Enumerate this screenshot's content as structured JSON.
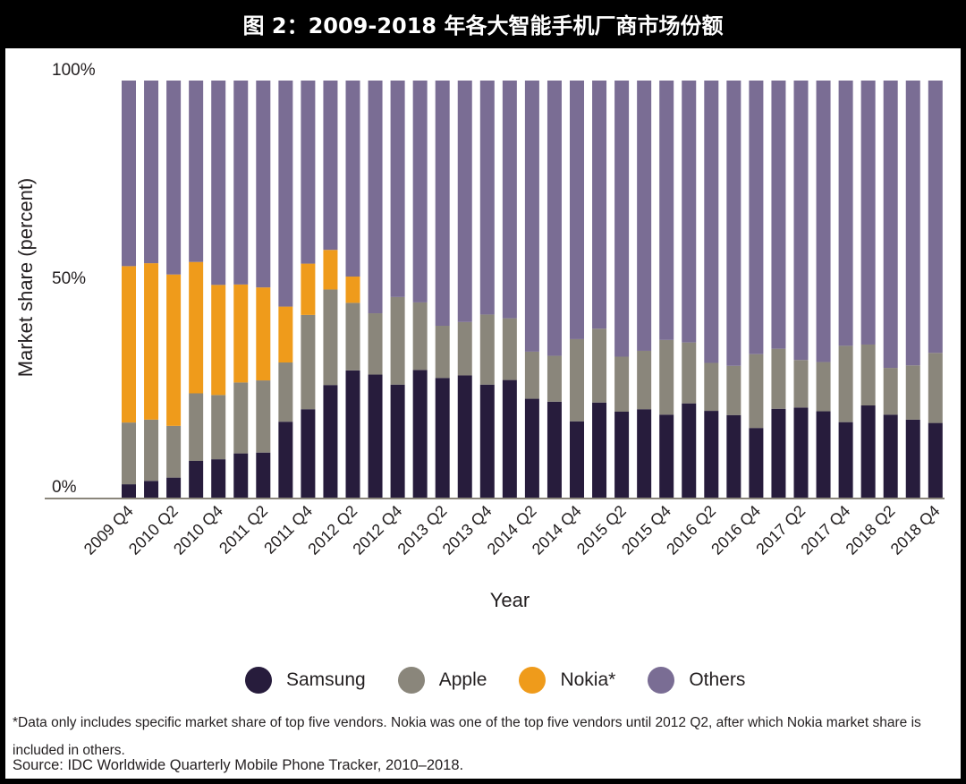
{
  "figure_title": "图 2：2009-2018 年各大智能手机厂商市场份额",
  "footnote": "*Data only includes specific market share of top five vendors. Nokia was one of the top five vendors until 2012 Q2, after which Nokia market share is included in others.",
  "source": "Source: IDC Worldwide Quarterly Mobile Phone Tracker, 2010–2018.",
  "colors": {
    "samsung": "#271c3c",
    "apple": "#8a867b",
    "nokia": "#ef9b1b",
    "others": "#7a6d94"
  },
  "chart_data": {
    "type": "bar",
    "stacked": true,
    "xlabel": "Year",
    "ylabel": "Market share (percent)",
    "ylim": [
      0,
      100
    ],
    "yticks": [
      "0%",
      "50%",
      "100%"
    ],
    "categories": [
      "2009 Q4",
      "2010 Q1",
      "2010 Q2",
      "2010 Q3",
      "2010 Q4",
      "2011 Q1",
      "2011 Q2",
      "2011 Q3",
      "2011 Q4",
      "2012 Q1",
      "2012 Q2",
      "2012 Q3",
      "2012 Q4",
      "2013 Q1",
      "2013 Q2",
      "2013 Q3",
      "2013 Q4",
      "2014 Q1",
      "2014 Q2",
      "2014 Q3",
      "2014 Q4",
      "2015 Q1",
      "2015 Q2",
      "2015 Q3",
      "2015 Q4",
      "2016 Q1",
      "2016 Q2",
      "2016 Q3",
      "2016 Q4",
      "2017 Q1",
      "2017 Q2",
      "2017 Q3",
      "2017 Q4",
      "2018 Q1",
      "2018 Q2",
      "2018 Q3",
      "2018 Q4"
    ],
    "xtick_labels": [
      "2009 Q4",
      "2010 Q2",
      "2010 Q4",
      "2011 Q2",
      "2011 Q4",
      "2012 Q2",
      "2012 Q4",
      "2013 Q2",
      "2013 Q4",
      "2014 Q2",
      "2014 Q4",
      "2015 Q2",
      "2015 Q4",
      "2016 Q2",
      "2016 Q4",
      "2017 Q2",
      "2017 Q4",
      "2018 Q2",
      "2018 Q4"
    ],
    "series": [
      {
        "name": "Samsung",
        "color_key": "samsung",
        "values": [
          3.2,
          4.0,
          4.8,
          8.8,
          9.2,
          10.6,
          10.8,
          18.2,
          21.2,
          27.0,
          30.5,
          29.5,
          27.1,
          30.6,
          28.7,
          29.3,
          27.1,
          28.2,
          23.7,
          23.0,
          18.3,
          22.8,
          20.6,
          21.2,
          19.9,
          22.6,
          20.8,
          19.8,
          16.7,
          21.3,
          21.6,
          20.7,
          18.1,
          22.1,
          19.9,
          18.7,
          17.9
        ]
      },
      {
        "name": "Apple",
        "color_key": "apple",
        "values": [
          14.8,
          14.7,
          12.4,
          16.2,
          15.4,
          17.0,
          17.3,
          14.2,
          22.6,
          22.9,
          16.2,
          14.7,
          21.0,
          16.2,
          12.5,
          12.8,
          16.8,
          14.8,
          11.3,
          11.0,
          19.7,
          17.7,
          13.2,
          14.0,
          17.9,
          14.6,
          11.5,
          11.8,
          17.7,
          14.4,
          11.4,
          11.8,
          18.3,
          14.6,
          11.2,
          13.0,
          16.8
        ]
      },
      {
        "name": "Nokia*",
        "color_key": "nokia",
        "values": [
          37.5,
          37.5,
          36.3,
          31.5,
          26.4,
          23.5,
          22.3,
          13.4,
          12.3,
          9.5,
          6.3,
          0,
          0,
          0,
          0,
          0,
          0,
          0,
          0,
          0,
          0,
          0,
          0,
          0,
          0,
          0,
          0,
          0,
          0,
          0,
          0,
          0,
          0,
          0,
          0,
          0,
          0
        ]
      },
      {
        "name": "Others",
        "color_key": "others",
        "values": [
          44.5,
          43.8,
          46.5,
          43.5,
          49.0,
          48.9,
          49.6,
          54.2,
          43.9,
          40.6,
          47.0,
          55.8,
          51.9,
          53.2,
          58.8,
          57.9,
          56.1,
          57.0,
          65.0,
          66.0,
          62.0,
          59.5,
          66.2,
          64.8,
          62.2,
          62.8,
          67.7,
          68.4,
          65.6,
          64.3,
          67.0,
          67.5,
          63.6,
          63.3,
          68.9,
          68.3,
          65.3
        ]
      }
    ],
    "legend": {
      "position": "bottom",
      "entries": [
        "Samsung",
        "Apple",
        "Nokia*",
        "Others"
      ]
    },
    "grid": false
  }
}
